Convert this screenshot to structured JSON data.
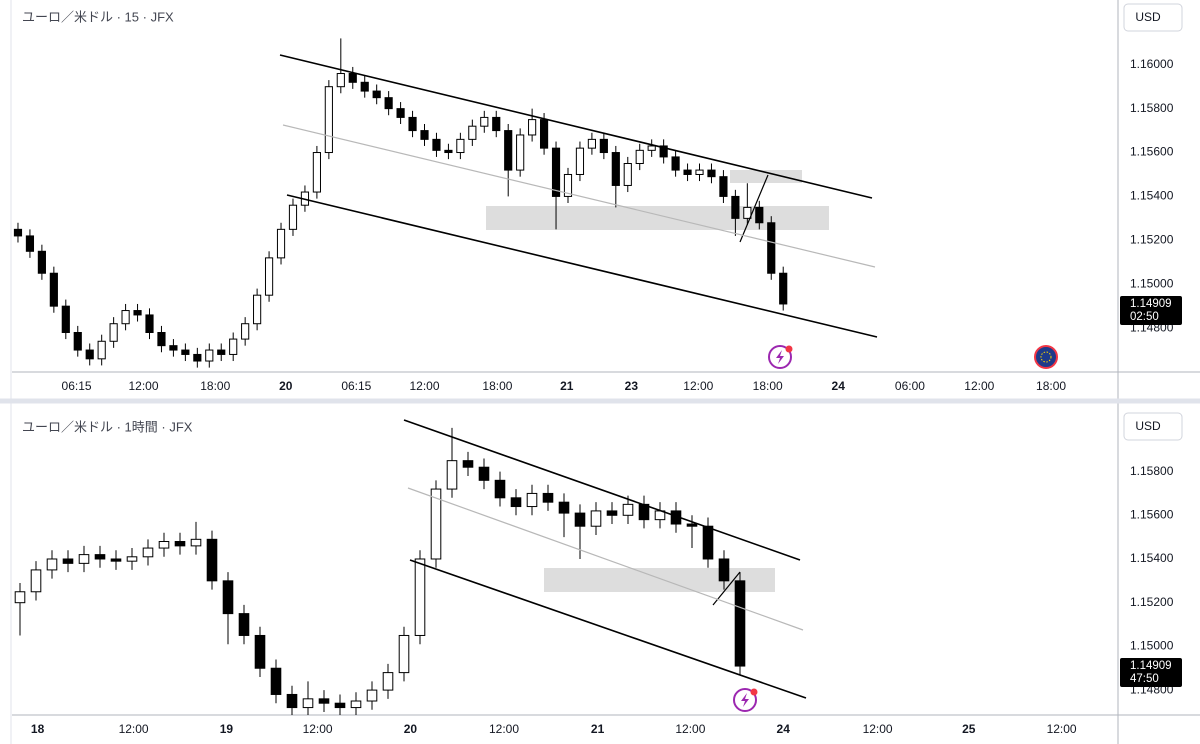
{
  "chart_data": [
    {
      "type": "candlestick",
      "title": "ユーロ／米ドル · 15 · JFX",
      "currency": "USD",
      "last_price": "1.14909",
      "countdown": "02:50",
      "up_color": "#ffffff",
      "down_color": "#000000",
      "xlim": [
        -0.5,
        92
      ],
      "ylim": [
        1.146,
        1.16295
      ],
      "xticks": [
        {
          "value": 4.9,
          "label": "06:15"
        },
        {
          "value": 10.5,
          "label": "12:00"
        },
        {
          "value": 16.5,
          "label": "18:00"
        },
        {
          "value": 22.4,
          "label": "20"
        },
        {
          "value": 28.3,
          "label": "06:15"
        },
        {
          "value": 34.0,
          "label": "12:00"
        },
        {
          "value": 40.1,
          "label": "18:00"
        },
        {
          "value": 45.9,
          "label": "21"
        },
        {
          "value": 51.3,
          "label": "23"
        },
        {
          "value": 56.9,
          "label": "12:00"
        },
        {
          "value": 62.7,
          "label": "18:00"
        },
        {
          "value": 68.6,
          "label": "24"
        },
        {
          "value": 74.6,
          "label": "06:00"
        },
        {
          "value": 80.4,
          "label": "12:00"
        },
        {
          "value": 86.4,
          "label": "18:00"
        }
      ],
      "yticks": [
        {
          "value": 1.16,
          "label": "1.16000"
        },
        {
          "value": 1.158,
          "label": "1.15800"
        },
        {
          "value": 1.156,
          "label": "1.15600"
        },
        {
          "value": 1.154,
          "label": "1.15400"
        },
        {
          "value": 1.152,
          "label": "1.15200"
        },
        {
          "value": 1.15,
          "label": "1.15000"
        },
        {
          "value": 1.148,
          "label": "1.14800"
        }
      ],
      "open": [
        1.1525,
        1.1522,
        1.1515,
        1.1505,
        1.149,
        1.1478,
        1.147,
        1.1466,
        1.1474,
        1.1482,
        1.1488,
        1.1486,
        1.1478,
        1.1472,
        1.147,
        1.1468,
        1.1465,
        1.147,
        1.1468,
        1.1475,
        1.1482,
        1.1495,
        1.1512,
        1.1525,
        1.1536,
        1.1542,
        1.156,
        1.159,
        1.1596,
        1.1592,
        1.1588,
        1.1585,
        1.158,
        1.1576,
        1.157,
        1.1566,
        1.1561,
        1.156,
        1.1566,
        1.1572,
        1.1576,
        1.157,
        1.1552,
        1.1568,
        1.1575,
        1.1562,
        1.154,
        1.155,
        1.1562,
        1.1566,
        1.156,
        1.1545,
        1.1555,
        1.1561,
        1.1563,
        1.1558,
        1.1552,
        1.155,
        1.1552,
        1.1549,
        1.154,
        1.153,
        1.1535,
        1.1528,
        1.1505
      ],
      "high": [
        1.1528,
        1.1525,
        1.1518,
        1.1508,
        1.1493,
        1.1481,
        1.1473,
        1.1477,
        1.1485,
        1.1491,
        1.1491,
        1.1489,
        1.1481,
        1.1475,
        1.1473,
        1.1471,
        1.1473,
        1.1473,
        1.1478,
        1.1485,
        1.1498,
        1.1515,
        1.1528,
        1.1539,
        1.1545,
        1.1563,
        1.1593,
        1.1612,
        1.1599,
        1.1595,
        1.1591,
        1.1588,
        1.1583,
        1.1579,
        1.1573,
        1.1569,
        1.1564,
        1.1569,
        1.1575,
        1.1579,
        1.1579,
        1.1573,
        1.1571,
        1.158,
        1.1578,
        1.1565,
        1.1553,
        1.1565,
        1.1569,
        1.1569,
        1.1563,
        1.1558,
        1.1564,
        1.1566,
        1.1566,
        1.1561,
        1.1555,
        1.1555,
        1.1555,
        1.1552,
        1.1543,
        1.1546,
        1.1538,
        1.1531,
        1.1508
      ],
      "low": [
        1.1519,
        1.1512,
        1.1502,
        1.1487,
        1.1475,
        1.1467,
        1.1463,
        1.1463,
        1.1471,
        1.1479,
        1.1483,
        1.1475,
        1.1469,
        1.1467,
        1.1465,
        1.1462,
        1.1462,
        1.1465,
        1.1465,
        1.1472,
        1.1479,
        1.1492,
        1.1509,
        1.1522,
        1.1533,
        1.1539,
        1.1557,
        1.1587,
        1.1589,
        1.1585,
        1.1582,
        1.1577,
        1.1573,
        1.1567,
        1.1563,
        1.1558,
        1.1557,
        1.1557,
        1.1563,
        1.1569,
        1.1567,
        1.154,
        1.1549,
        1.1565,
        1.1559,
        1.1525,
        1.1537,
        1.1547,
        1.1559,
        1.1557,
        1.1535,
        1.1542,
        1.1552,
        1.1558,
        1.1555,
        1.1549,
        1.1547,
        1.1547,
        1.1546,
        1.1537,
        1.1522,
        1.1527,
        1.1525,
        1.1502,
        1.1488
      ],
      "close": [
        1.1522,
        1.1515,
        1.1505,
        1.149,
        1.1478,
        1.147,
        1.1466,
        1.1474,
        1.1482,
        1.1488,
        1.1486,
        1.1478,
        1.1472,
        1.147,
        1.1468,
        1.1465,
        1.147,
        1.1468,
        1.1475,
        1.1482,
        1.1495,
        1.1512,
        1.1525,
        1.1536,
        1.1542,
        1.156,
        1.159,
        1.1596,
        1.1592,
        1.1588,
        1.1585,
        1.158,
        1.1576,
        1.157,
        1.1566,
        1.1561,
        1.156,
        1.1566,
        1.1572,
        1.1576,
        1.157,
        1.1552,
        1.1568,
        1.1575,
        1.1562,
        1.154,
        1.155,
        1.1562,
        1.1566,
        1.156,
        1.1545,
        1.1555,
        1.1561,
        1.1563,
        1.1558,
        1.1552,
        1.155,
        1.1552,
        1.1549,
        1.154,
        1.153,
        1.1535,
        1.1528,
        1.1505,
        1.1491
      ]
    },
    {
      "type": "candlestick",
      "title": "ユーロ／米ドル · 1時間 · JFX",
      "currency": "USD",
      "last_price": "1.14909",
      "countdown": "47:50",
      "up_color": "#ffffff",
      "down_color": "#000000",
      "xlim": [
        -0.5,
        68.625
      ],
      "ylim": [
        1.14686,
        1.16091
      ],
      "xticks": [
        {
          "value": 1.1,
          "label": "18"
        },
        {
          "value": 7.1,
          "label": "12:00"
        },
        {
          "value": 12.9,
          "label": "19"
        },
        {
          "value": 18.6,
          "label": "12:00"
        },
        {
          "value": 24.4,
          "label": "20"
        },
        {
          "value": 30.25,
          "label": "12:00"
        },
        {
          "value": 36.1,
          "label": "21"
        },
        {
          "value": 41.9,
          "label": "12:00"
        },
        {
          "value": 47.7,
          "label": "24"
        },
        {
          "value": 53.6,
          "label": "12:00"
        },
        {
          "value": 59.3,
          "label": "25"
        },
        {
          "value": 65.1,
          "label": "12:00"
        }
      ],
      "yticks": [
        {
          "value": 1.158,
          "label": "1.15800"
        },
        {
          "value": 1.156,
          "label": "1.15600"
        },
        {
          "value": 1.154,
          "label": "1.15400"
        },
        {
          "value": 1.152,
          "label": "1.15200"
        },
        {
          "value": 1.15,
          "label": "1.15000"
        },
        {
          "value": 1.148,
          "label": "1.14800"
        }
      ],
      "open": [
        1.152,
        1.1525,
        1.1535,
        1.154,
        1.1538,
        1.1542,
        1.154,
        1.1539,
        1.1541,
        1.1545,
        1.1548,
        1.1546,
        1.1549,
        1.153,
        1.1515,
        1.1505,
        1.149,
        1.1478,
        1.1472,
        1.1476,
        1.1474,
        1.1472,
        1.1475,
        1.148,
        1.1488,
        1.1505,
        1.154,
        1.1572,
        1.1585,
        1.1582,
        1.1576,
        1.1568,
        1.1564,
        1.157,
        1.1566,
        1.1561,
        1.1555,
        1.1562,
        1.156,
        1.1565,
        1.1558,
        1.1562,
        1.1556,
        1.1555,
        1.154,
        1.153
      ],
      "high": [
        1.1529,
        1.1539,
        1.1544,
        1.1544,
        1.1546,
        1.1546,
        1.1544,
        1.1545,
        1.1549,
        1.1552,
        1.1552,
        1.1557,
        1.1553,
        1.1534,
        1.1519,
        1.1509,
        1.1494,
        1.1482,
        1.1484,
        1.148,
        1.1478,
        1.1479,
        1.1484,
        1.1492,
        1.1509,
        1.1544,
        1.1576,
        1.16,
        1.1589,
        1.1586,
        1.158,
        1.1572,
        1.1574,
        1.1574,
        1.157,
        1.1565,
        1.1566,
        1.1566,
        1.1569,
        1.1569,
        1.1566,
        1.1566,
        1.156,
        1.1559,
        1.1544,
        1.1534
      ],
      "low": [
        1.1505,
        1.1521,
        1.1531,
        1.1534,
        1.1534,
        1.1536,
        1.1535,
        1.1535,
        1.1537,
        1.1541,
        1.1542,
        1.1542,
        1.1526,
        1.1501,
        1.1501,
        1.1486,
        1.1474,
        1.1468,
        1.1468,
        1.147,
        1.1468,
        1.1468,
        1.1471,
        1.1476,
        1.1484,
        1.1501,
        1.1536,
        1.1568,
        1.1578,
        1.1572,
        1.1564,
        1.156,
        1.156,
        1.1562,
        1.155,
        1.154,
        1.1551,
        1.1556,
        1.1556,
        1.1554,
        1.1554,
        1.1552,
        1.1545,
        1.1536,
        1.1526,
        1.1487
      ],
      "close": [
        1.1525,
        1.1535,
        1.154,
        1.1538,
        1.1542,
        1.154,
        1.1539,
        1.1541,
        1.1545,
        1.1548,
        1.1546,
        1.1549,
        1.153,
        1.1515,
        1.1505,
        1.149,
        1.1478,
        1.1472,
        1.1476,
        1.1474,
        1.1472,
        1.1475,
        1.148,
        1.1488,
        1.1505,
        1.154,
        1.1572,
        1.1585,
        1.1582,
        1.1576,
        1.1568,
        1.1564,
        1.157,
        1.1566,
        1.1561,
        1.1555,
        1.1562,
        1.156,
        1.1565,
        1.1558,
        1.1562,
        1.1556,
        1.1555,
        1.154,
        1.153,
        1.1491
      ]
    }
  ]
}
